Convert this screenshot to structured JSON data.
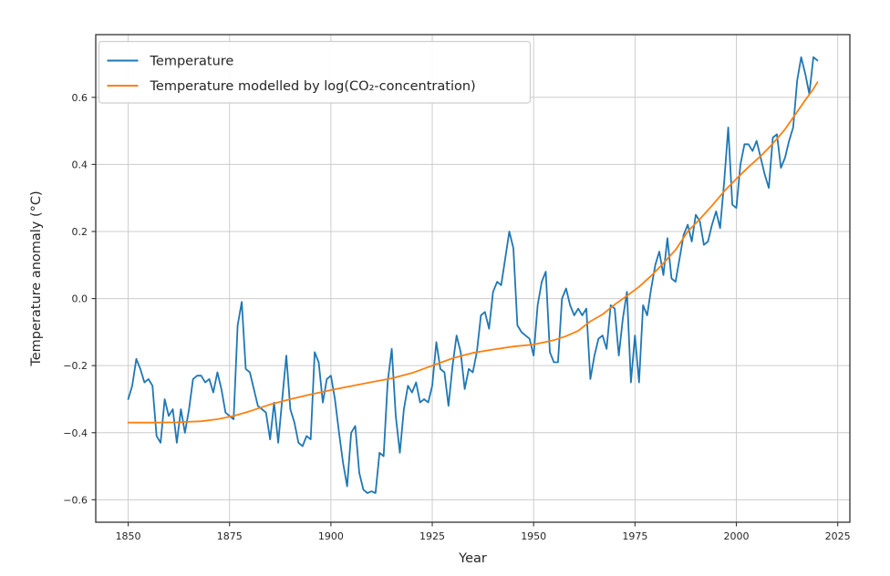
{
  "figure": {
    "background": "#ffffff",
    "grid_color": "#cccccc",
    "spine_color": "#333333",
    "text_color": "#262626",
    "legend_border": "#cccccc",
    "legend_bg": "#ffffff"
  },
  "chart_data": {
    "type": "line",
    "title": "",
    "xlabel": "Year",
    "ylabel": "Temperature anomaly (°C)",
    "xlim": [
      1842,
      2028
    ],
    "ylim": [
      -0.667,
      0.787
    ],
    "xticks": [
      1850,
      1875,
      1900,
      1925,
      1950,
      1975,
      2000,
      2025
    ],
    "yticks": [
      -0.6,
      -0.4,
      -0.2,
      0.0,
      0.2,
      0.4,
      0.6
    ],
    "grid": true,
    "legend": {
      "position": "upper left"
    },
    "series": [
      {
        "name": "Temperature",
        "color": "#1f77b4",
        "x_start": 1850,
        "x_step": 1,
        "values": [
          -0.3,
          -0.26,
          -0.18,
          -0.21,
          -0.25,
          -0.24,
          -0.26,
          -0.41,
          -0.43,
          -0.3,
          -0.35,
          -0.33,
          -0.43,
          -0.33,
          -0.4,
          -0.33,
          -0.24,
          -0.23,
          -0.23,
          -0.25,
          -0.24,
          -0.28,
          -0.22,
          -0.27,
          -0.34,
          -0.35,
          -0.36,
          -0.08,
          -0.01,
          -0.21,
          -0.22,
          -0.27,
          -0.32,
          -0.33,
          -0.34,
          -0.42,
          -0.31,
          -0.43,
          -0.3,
          -0.17,
          -0.33,
          -0.37,
          -0.43,
          -0.44,
          -0.41,
          -0.42,
          -0.16,
          -0.19,
          -0.31,
          -0.24,
          -0.23,
          -0.3,
          -0.4,
          -0.49,
          -0.56,
          -0.4,
          -0.38,
          -0.52,
          -0.57,
          -0.58,
          -0.575,
          -0.58,
          -0.46,
          -0.47,
          -0.25,
          -0.15,
          -0.35,
          -0.46,
          -0.33,
          -0.26,
          -0.28,
          -0.25,
          -0.31,
          -0.3,
          -0.31,
          -0.26,
          -0.13,
          -0.21,
          -0.22,
          -0.32,
          -0.2,
          -0.11,
          -0.16,
          -0.27,
          -0.21,
          -0.22,
          -0.16,
          -0.05,
          -0.04,
          -0.09,
          0.02,
          0.05,
          0.04,
          0.12,
          0.2,
          0.15,
          -0.08,
          -0.1,
          -0.11,
          -0.12,
          -0.17,
          -0.02,
          0.05,
          0.08,
          -0.16,
          -0.19,
          -0.19,
          0.0,
          0.03,
          -0.02,
          -0.05,
          -0.03,
          -0.05,
          -0.03,
          -0.24,
          -0.17,
          -0.12,
          -0.11,
          -0.15,
          -0.02,
          -0.03,
          -0.17,
          -0.06,
          0.02,
          -0.25,
          -0.11,
          -0.25,
          -0.02,
          -0.05,
          0.03,
          0.1,
          0.14,
          0.07,
          0.18,
          0.06,
          0.05,
          0.12,
          0.19,
          0.22,
          0.17,
          0.25,
          0.23,
          0.16,
          0.17,
          0.22,
          0.26,
          0.21,
          0.35,
          0.51,
          0.28,
          0.27,
          0.4,
          0.46,
          0.46,
          0.44,
          0.47,
          0.42,
          0.37,
          0.33,
          0.48,
          0.49,
          0.39,
          0.42,
          0.47,
          0.51,
          0.65,
          0.72,
          0.67,
          0.61,
          0.72,
          0.71
        ]
      },
      {
        "name": "Temperature modelled by log(CO₂-concentration)",
        "color": "#ff7f0e",
        "points": [
          [
            1850,
            -0.37
          ],
          [
            1856,
            -0.37
          ],
          [
            1862,
            -0.369
          ],
          [
            1868,
            -0.366
          ],
          [
            1872,
            -0.36
          ],
          [
            1876,
            -0.35
          ],
          [
            1880,
            -0.336
          ],
          [
            1885,
            -0.316
          ],
          [
            1890,
            -0.3
          ],
          [
            1895,
            -0.286
          ],
          [
            1900,
            -0.273
          ],
          [
            1905,
            -0.261
          ],
          [
            1910,
            -0.249
          ],
          [
            1915,
            -0.238
          ],
          [
            1920,
            -0.222
          ],
          [
            1925,
            -0.2
          ],
          [
            1930,
            -0.178
          ],
          [
            1935,
            -0.162
          ],
          [
            1940,
            -0.152
          ],
          [
            1945,
            -0.143
          ],
          [
            1950,
            -0.137
          ],
          [
            1955,
            -0.124
          ],
          [
            1958,
            -0.112
          ],
          [
            1961,
            -0.096
          ],
          [
            1964,
            -0.068
          ],
          [
            1967,
            -0.047
          ],
          [
            1970,
            -0.018
          ],
          [
            1973,
            0.008
          ],
          [
            1976,
            0.035
          ],
          [
            1979,
            0.068
          ],
          [
            1982,
            0.105
          ],
          [
            1985,
            0.145
          ],
          [
            1988,
            0.2
          ],
          [
            1991,
            0.237
          ],
          [
            1994,
            0.277
          ],
          [
            1997,
            0.32
          ],
          [
            2000,
            0.357
          ],
          [
            2003,
            0.392
          ],
          [
            2006,
            0.425
          ],
          [
            2009,
            0.462
          ],
          [
            2012,
            0.505
          ],
          [
            2015,
            0.557
          ],
          [
            2017,
            0.592
          ],
          [
            2019,
            0.625
          ],
          [
            2020,
            0.645
          ]
        ]
      }
    ]
  }
}
